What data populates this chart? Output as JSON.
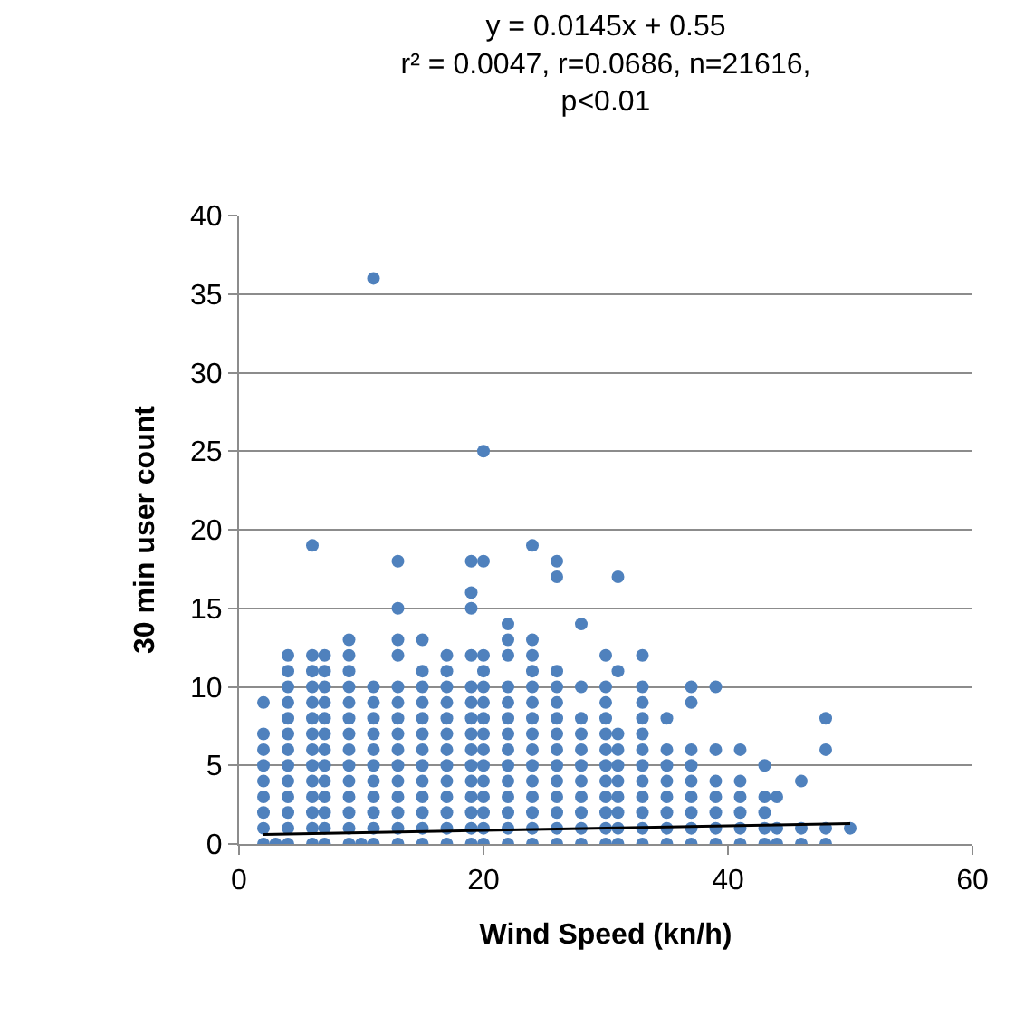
{
  "chart_data": {
    "type": "scatter",
    "title": "y = 0.0145x + 0.55\nr² = 0.0047, r=0.0686, n=21616,\np<0.01",
    "xlabel": "Wind Speed (kn/h)",
    "ylabel": "30 min user count",
    "xlim": [
      0,
      60
    ],
    "xticks": [
      0,
      20,
      40,
      60
    ],
    "ylim": [
      0,
      40
    ],
    "yticks": [
      0,
      5,
      10,
      15,
      20,
      25,
      30,
      35,
      40
    ],
    "grid": "y",
    "series": [
      {
        "color": "#4f81bd",
        "marker": "circle",
        "x": [
          2,
          2,
          2,
          2,
          2,
          2,
          2,
          2,
          2,
          3,
          4,
          4,
          4,
          4,
          4,
          4,
          4,
          4,
          4,
          4,
          4,
          4,
          4,
          6,
          6,
          6,
          6,
          6,
          6,
          6,
          6,
          6,
          6,
          6,
          6,
          6,
          6,
          7,
          7,
          7,
          7,
          7,
          7,
          7,
          7,
          7,
          7,
          7,
          7,
          7,
          9,
          9,
          9,
          9,
          9,
          9,
          9,
          9,
          9,
          9,
          9,
          9,
          9,
          9,
          10,
          11,
          11,
          11,
          11,
          11,
          11,
          11,
          11,
          11,
          11,
          11,
          11,
          13,
          13,
          13,
          13,
          13,
          13,
          13,
          13,
          13,
          13,
          13,
          13,
          13,
          13,
          13,
          15,
          15,
          15,
          15,
          15,
          15,
          15,
          15,
          15,
          15,
          15,
          15,
          15,
          17,
          17,
          17,
          17,
          17,
          17,
          17,
          17,
          17,
          17,
          17,
          17,
          17,
          19,
          19,
          19,
          19,
          19,
          19,
          19,
          19,
          19,
          19,
          19,
          19,
          19,
          19,
          19,
          20,
          20,
          20,
          20,
          20,
          20,
          20,
          20,
          20,
          20,
          20,
          20,
          20,
          20,
          20,
          22,
          22,
          22,
          22,
          22,
          22,
          22,
          22,
          22,
          22,
          22,
          22,
          22,
          22,
          24,
          24,
          24,
          24,
          24,
          24,
          24,
          24,
          24,
          24,
          24,
          24,
          24,
          24,
          24,
          26,
          26,
          26,
          26,
          26,
          26,
          26,
          26,
          26,
          26,
          26,
          26,
          26,
          26,
          28,
          28,
          28,
          28,
          28,
          28,
          28,
          28,
          28,
          28,
          28,
          30,
          30,
          30,
          30,
          30,
          30,
          30,
          30,
          30,
          30,
          30,
          30,
          31,
          31,
          31,
          31,
          31,
          31,
          31,
          31,
          31,
          31,
          33,
          33,
          33,
          33,
          33,
          33,
          33,
          33,
          33,
          33,
          33,
          33,
          35,
          35,
          35,
          35,
          35,
          35,
          35,
          35,
          37,
          37,
          37,
          37,
          37,
          37,
          37,
          37,
          37,
          39,
          39,
          39,
          39,
          39,
          39,
          39,
          41,
          41,
          41,
          41,
          41,
          41,
          43,
          43,
          43,
          43,
          43,
          44,
          44,
          44,
          46,
          46,
          46,
          48,
          48,
          48,
          48,
          50
        ],
        "values": [
          0,
          1,
          2,
          3,
          4,
          5,
          6,
          7,
          9,
          0,
          0,
          1,
          2,
          3,
          4,
          5,
          6,
          7,
          8,
          9,
          10,
          11,
          12,
          0,
          1,
          2,
          3,
          4,
          5,
          6,
          7,
          8,
          9,
          10,
          11,
          12,
          19,
          0,
          1,
          2,
          3,
          4,
          5,
          6,
          7,
          8,
          9,
          10,
          11,
          12,
          0,
          1,
          2,
          3,
          4,
          5,
          6,
          7,
          8,
          9,
          10,
          11,
          12,
          13,
          0,
          0,
          1,
          2,
          3,
          4,
          5,
          6,
          7,
          8,
          9,
          10,
          36,
          0,
          1,
          2,
          3,
          4,
          5,
          6,
          7,
          8,
          9,
          10,
          12,
          13,
          15,
          18,
          0,
          1,
          2,
          3,
          4,
          5,
          6,
          7,
          8,
          9,
          10,
          11,
          13,
          0,
          1,
          2,
          3,
          4,
          5,
          6,
          7,
          8,
          9,
          10,
          11,
          12,
          0,
          1,
          2,
          3,
          4,
          5,
          6,
          7,
          8,
          9,
          10,
          12,
          15,
          16,
          18,
          0,
          1,
          2,
          3,
          4,
          5,
          6,
          7,
          8,
          9,
          10,
          11,
          12,
          18,
          25,
          0,
          1,
          2,
          3,
          4,
          5,
          6,
          7,
          8,
          9,
          10,
          12,
          13,
          14,
          0,
          1,
          2,
          3,
          4,
          5,
          6,
          7,
          8,
          9,
          10,
          11,
          12,
          13,
          19,
          0,
          1,
          2,
          3,
          4,
          5,
          6,
          7,
          8,
          9,
          10,
          11,
          17,
          18,
          0,
          1,
          2,
          3,
          4,
          5,
          6,
          7,
          8,
          10,
          14,
          0,
          1,
          2,
          3,
          4,
          5,
          6,
          7,
          8,
          9,
          10,
          12,
          0,
          1,
          2,
          3,
          4,
          5,
          6,
          7,
          11,
          17,
          0,
          1,
          2,
          3,
          4,
          5,
          6,
          7,
          8,
          9,
          10,
          12,
          0,
          1,
          2,
          3,
          4,
          5,
          6,
          8,
          0,
          1,
          2,
          3,
          4,
          5,
          6,
          9,
          10,
          0,
          1,
          2,
          3,
          4,
          6,
          10,
          0,
          1,
          2,
          3,
          4,
          6,
          0,
          1,
          2,
          3,
          5,
          0,
          1,
          3,
          0,
          1,
          4,
          0,
          1,
          6,
          8,
          1
        ]
      },
      {
        "type": "line",
        "color": "#000000",
        "x": [
          2,
          50
        ],
        "values": [
          0.6,
          1.3
        ]
      }
    ]
  }
}
